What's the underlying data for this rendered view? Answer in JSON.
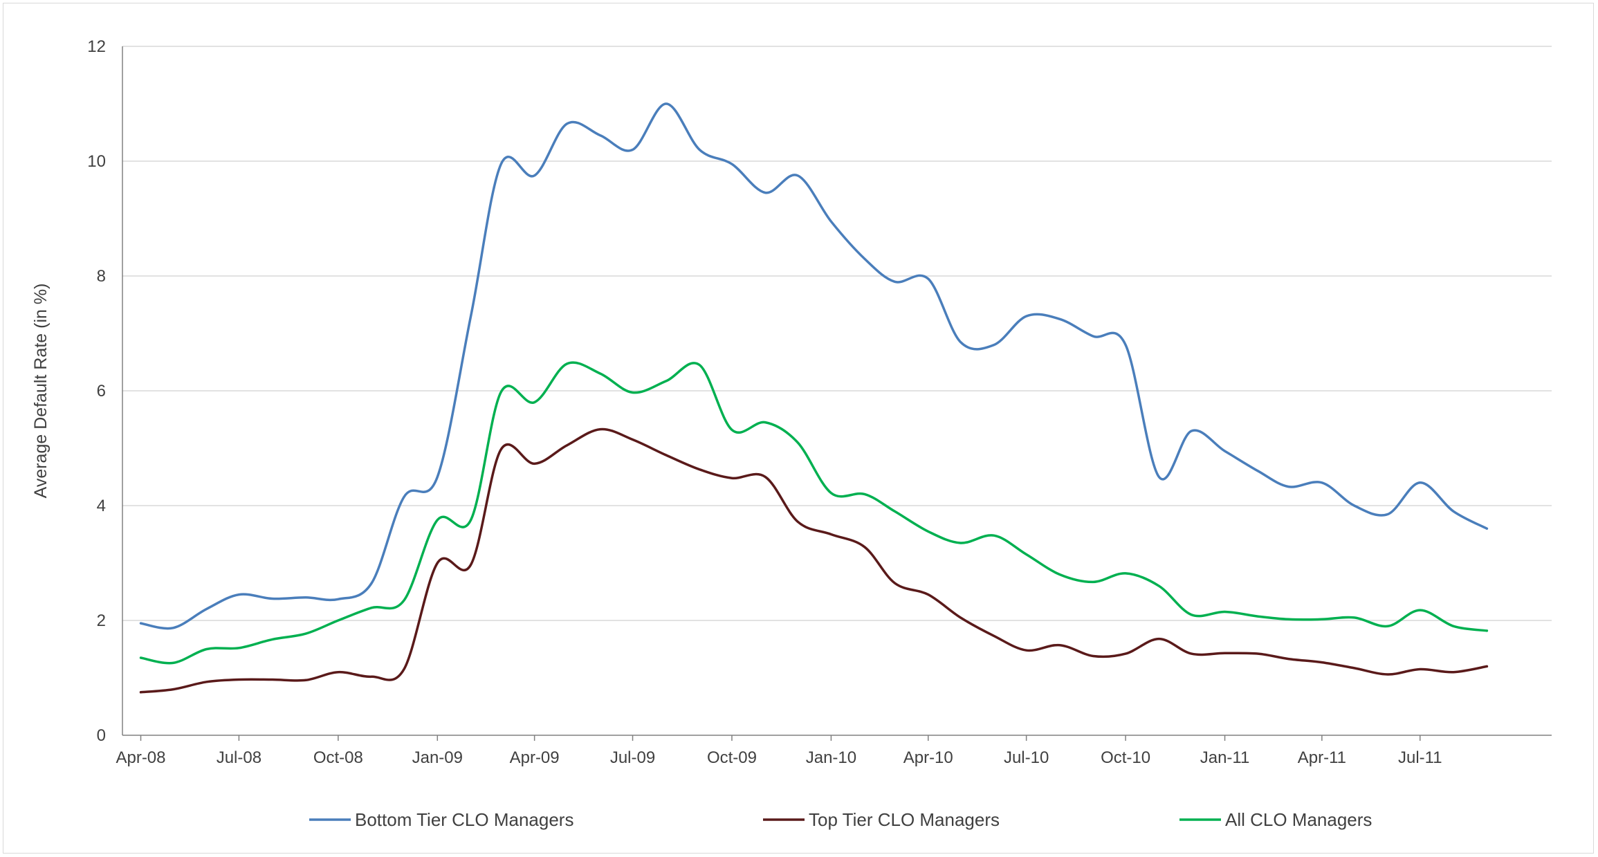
{
  "chart_data": {
    "type": "line",
    "title": "",
    "xlabel": "",
    "ylabel": "Average Default Rate (in %)",
    "ylim": [
      0,
      12
    ],
    "yticks": [
      0,
      2,
      4,
      6,
      8,
      10,
      12
    ],
    "xlim": [
      "2008-03-15",
      "2011-10-31"
    ],
    "xticks": [
      {
        "date": "2008-04-01",
        "label": "Apr-08"
      },
      {
        "date": "2008-07-01",
        "label": "Jul-08"
      },
      {
        "date": "2008-10-01",
        "label": "Oct-08"
      },
      {
        "date": "2009-01-01",
        "label": "Jan-09"
      },
      {
        "date": "2009-04-01",
        "label": "Apr-09"
      },
      {
        "date": "2009-07-01",
        "label": "Jul-09"
      },
      {
        "date": "2009-10-01",
        "label": "Oct-09"
      },
      {
        "date": "2010-01-01",
        "label": "Jan-10"
      },
      {
        "date": "2010-04-01",
        "label": "Apr-10"
      },
      {
        "date": "2010-07-01",
        "label": "Jul-10"
      },
      {
        "date": "2010-10-01",
        "label": "Oct-10"
      },
      {
        "date": "2011-01-01",
        "label": "Jan-11"
      },
      {
        "date": "2011-04-01",
        "label": "Apr-11"
      },
      {
        "date": "2011-07-01",
        "label": "Jul-11"
      }
    ],
    "grid": "horizontal",
    "legend_position": "bottom",
    "x": [
      "2008-04-01",
      "2008-05-01",
      "2008-06-01",
      "2008-07-01",
      "2008-08-01",
      "2008-09-01",
      "2008-10-01",
      "2008-11-01",
      "2008-12-01",
      "2009-01-01",
      "2009-02-01",
      "2009-03-01",
      "2009-04-01",
      "2009-05-01",
      "2009-06-01",
      "2009-07-01",
      "2009-08-01",
      "2009-09-01",
      "2009-10-01",
      "2009-11-01",
      "2009-12-01",
      "2010-01-01",
      "2010-02-01",
      "2010-03-01",
      "2010-04-01",
      "2010-05-01",
      "2010-06-01",
      "2010-07-01",
      "2010-08-01",
      "2010-09-01",
      "2010-10-01",
      "2010-11-01",
      "2010-12-01",
      "2011-01-01",
      "2011-02-01",
      "2011-03-01",
      "2011-04-01",
      "2011-05-01",
      "2011-06-01",
      "2011-07-01",
      "2011-08-01",
      "2011-09-01"
    ],
    "series": [
      {
        "name": "Bottom Tier CLO Managers",
        "color": "#4a7ebb",
        "values": [
          1.95,
          1.87,
          2.2,
          2.45,
          2.38,
          2.4,
          2.37,
          2.65,
          4.15,
          4.5,
          7.3,
          9.95,
          9.75,
          10.65,
          10.45,
          10.2,
          11.0,
          10.2,
          9.95,
          9.45,
          9.75,
          8.95,
          8.3,
          7.9,
          7.95,
          6.85,
          6.8,
          7.3,
          7.25,
          6.95,
          6.8,
          4.5,
          5.3,
          4.95,
          4.6,
          4.33,
          4.4,
          4.0,
          3.85,
          4.4,
          3.9,
          3.6
        ]
      },
      {
        "name": "Top Tier CLO Managers",
        "color": "#5a1a1a",
        "values": [
          0.75,
          0.8,
          0.93,
          0.97,
          0.97,
          0.96,
          1.1,
          1.02,
          1.15,
          3.0,
          2.97,
          4.98,
          4.73,
          5.05,
          5.33,
          5.15,
          4.88,
          4.63,
          4.48,
          4.5,
          3.72,
          3.5,
          3.28,
          2.65,
          2.45,
          2.05,
          1.73,
          1.48,
          1.57,
          1.38,
          1.42,
          1.68,
          1.42,
          1.43,
          1.42,
          1.33,
          1.27,
          1.17,
          1.06,
          1.15,
          1.1,
          1.2
        ]
      },
      {
        "name": "All CLO Managers",
        "color": "#00b050",
        "values": [
          1.35,
          1.26,
          1.5,
          1.52,
          1.67,
          1.77,
          2.0,
          2.22,
          2.35,
          3.75,
          3.75,
          5.98,
          5.8,
          6.47,
          6.3,
          5.97,
          6.17,
          6.45,
          5.32,
          5.45,
          5.1,
          4.22,
          4.2,
          3.9,
          3.55,
          3.35,
          3.48,
          3.15,
          2.8,
          2.67,
          2.82,
          2.6,
          2.1,
          2.15,
          2.07,
          2.02,
          2.02,
          2.05,
          1.9,
          2.18,
          1.9,
          1.82
        ]
      }
    ]
  }
}
